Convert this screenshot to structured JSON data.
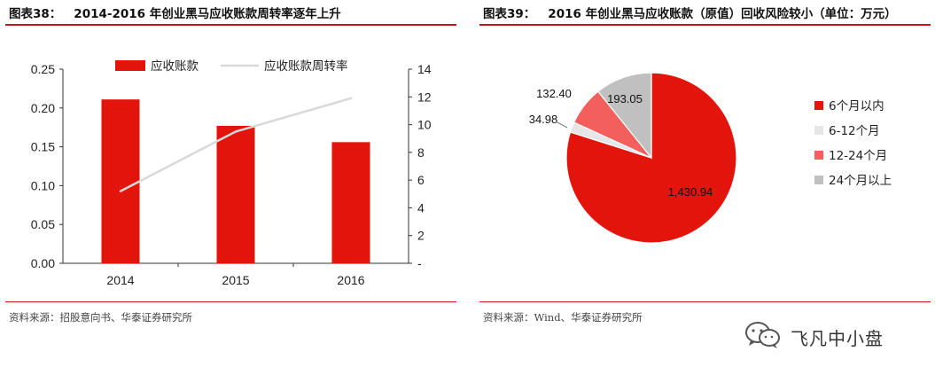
{
  "left": {
    "figure_no": "图表38：",
    "title": "2014-2016 年创业黑马应收账款周转率逐年上升",
    "source": "资料来源：招股意向书、华泰证券研究所"
  },
  "right": {
    "figure_no": "图表39：",
    "title": "2016 年创业黑马应收账款（原值）回收风险较小（单位：万元）",
    "source": "资料来源：Wind、华泰证券研究所"
  },
  "watermark": {
    "text": "飞凡中小盘"
  },
  "colors": {
    "red": "#e3140c",
    "line": "#d9d9d9",
    "pink": "#f25f5c",
    "gray": "#c0c0c0",
    "light": "#e6e6e6",
    "rule": "#c8161d"
  },
  "chart_data": [
    {
      "type": "bar",
      "categories": [
        "2014",
        "2015",
        "2016"
      ],
      "series": [
        {
          "name": "应收账款",
          "type": "bar",
          "axis": "left",
          "values": [
            0.211,
            0.177,
            0.156
          ],
          "color": "#e3140c"
        },
        {
          "name": "应收账款周转率",
          "type": "line",
          "axis": "right",
          "values": [
            5.2,
            9.5,
            11.9
          ],
          "color": "#d9d9d9"
        }
      ],
      "y_left": {
        "lim": [
          0,
          0.25
        ],
        "ticks": [
          "0.00",
          "0.05",
          "0.10",
          "0.15",
          "0.20",
          "0.25"
        ]
      },
      "y_right": {
        "lim": [
          0,
          14
        ],
        "ticks": [
          "-",
          "2",
          "4",
          "6",
          "8",
          "10",
          "12",
          "14"
        ]
      },
      "legend": "top",
      "grid": false
    },
    {
      "type": "pie",
      "start": "12 o'clock, clockwise",
      "slices": [
        {
          "label": "6个月以内",
          "value": 1430.94,
          "value_label": "1,430.94",
          "color": "#e3140c"
        },
        {
          "label": "6-12个月",
          "value": 34.98,
          "value_label": "34.98",
          "color": "#e6e6e6"
        },
        {
          "label": "12-24个月",
          "value": 132.4,
          "value_label": "132.40",
          "color": "#f25f5c"
        },
        {
          "label": "24个月以上",
          "value": 193.05,
          "value_label": "193.05",
          "color": "#c0c0c0"
        }
      ],
      "legend": "right"
    }
  ]
}
